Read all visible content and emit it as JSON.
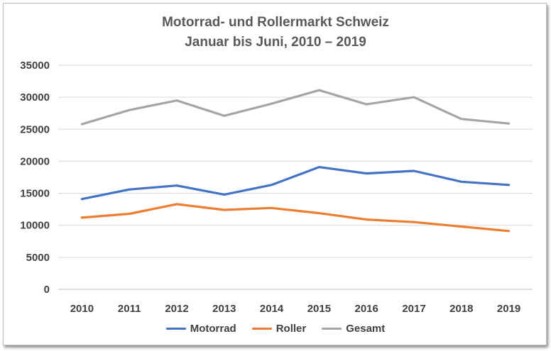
{
  "chart_data": {
    "type": "line",
    "title": "Motorrad- und Rollermarkt Schweiz",
    "subtitle": "Januar bis Juni, 2010 – 2019",
    "x": [
      "2010",
      "2011",
      "2012",
      "2013",
      "2014",
      "2015",
      "2016",
      "2017",
      "2018",
      "2019"
    ],
    "series": [
      {
        "name": "Motorrad",
        "color": "#4472c4",
        "values": [
          14100,
          15600,
          16200,
          14800,
          16300,
          19100,
          18100,
          18500,
          16800,
          16300
        ]
      },
      {
        "name": "Roller",
        "color": "#ed7d31",
        "values": [
          11200,
          11800,
          13300,
          12400,
          12700,
          11900,
          10900,
          10500,
          9800,
          9100
        ]
      },
      {
        "name": "Gesamt",
        "color": "#a5a5a5",
        "values": [
          25800,
          28000,
          29500,
          27100,
          29000,
          31100,
          28900,
          30000,
          26600,
          25900
        ]
      }
    ],
    "ylim": [
      0,
      35000
    ],
    "yticks": [
      0,
      5000,
      10000,
      15000,
      20000,
      25000,
      30000,
      35000
    ],
    "grid": true,
    "legend_position": "bottom"
  }
}
